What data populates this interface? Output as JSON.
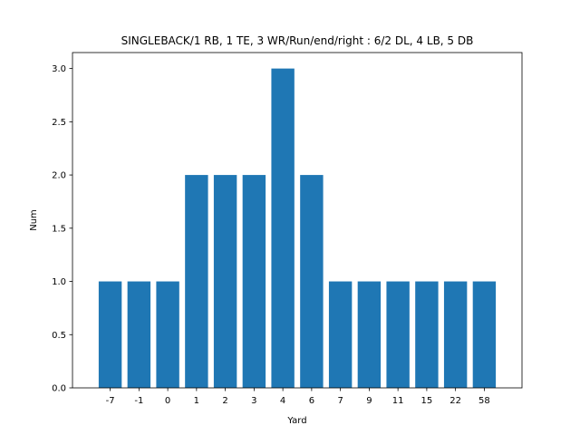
{
  "chart_data": {
    "type": "bar",
    "title": "SINGLEBACK/1 RB, 1 TE, 3 WR/Run/end/right : 6/2 DL, 4 LB, 5 DB",
    "xlabel": "Yard",
    "ylabel": "Num",
    "categories": [
      "-7",
      "-1",
      "0",
      "1",
      "2",
      "3",
      "4",
      "6",
      "7",
      "9",
      "11",
      "15",
      "22",
      "58"
    ],
    "values": [
      1,
      1,
      1,
      2,
      2,
      2,
      3,
      2,
      1,
      1,
      1,
      1,
      1,
      1
    ],
    "ylim": [
      0,
      3.15
    ],
    "yticks": [
      "0.0",
      "0.5",
      "1.0",
      "1.5",
      "2.0",
      "2.5",
      "3.0"
    ],
    "ytick_values": [
      0,
      0.5,
      1.0,
      1.5,
      2.0,
      2.5,
      3.0
    ],
    "grid": false,
    "legend": "none",
    "bar_color": "#1f77b4"
  }
}
